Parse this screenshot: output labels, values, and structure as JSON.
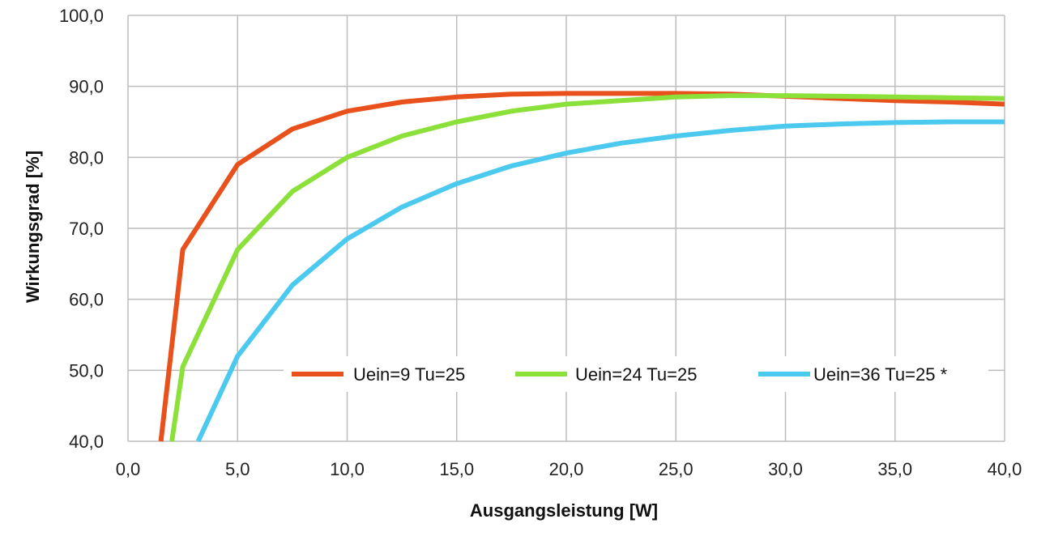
{
  "chart_data": {
    "type": "line",
    "title": "",
    "xlabel": "Ausgangsleistung [W]",
    "ylabel": "Wirkungsgrad [%]",
    "xlim": [
      0,
      40
    ],
    "ylim": [
      40,
      100
    ],
    "x_ticks": [
      "0,0",
      "5,0",
      "10,0",
      "15,0",
      "20,0",
      "25,0",
      "30,0",
      "35,0",
      "40,0"
    ],
    "y_ticks": [
      "40,0",
      "50,0",
      "60,0",
      "70,0",
      "80,0",
      "90,0",
      "100,0"
    ],
    "grid": true,
    "legend_position": "lower-right",
    "series": [
      {
        "name": "Uein=9 Tu=25",
        "color": "#e8501c",
        "points": [
          [
            1.5,
            40.0
          ],
          [
            2.5,
            67.0
          ],
          [
            5.0,
            79.0
          ],
          [
            7.5,
            84.0
          ],
          [
            10.0,
            86.5
          ],
          [
            12.5,
            87.8
          ],
          [
            15.0,
            88.5
          ],
          [
            17.5,
            88.9
          ],
          [
            20.0,
            89.0
          ],
          [
            22.5,
            89.0
          ],
          [
            25.0,
            89.0
          ],
          [
            27.5,
            88.9
          ],
          [
            30.0,
            88.6
          ],
          [
            32.5,
            88.3
          ],
          [
            35.0,
            88.0
          ],
          [
            37.5,
            87.8
          ],
          [
            40.0,
            87.5
          ]
        ]
      },
      {
        "name": "Uein=24 Tu=25",
        "color": "#8ce03a",
        "points": [
          [
            2.0,
            40.0
          ],
          [
            2.5,
            50.5
          ],
          [
            5.0,
            67.0
          ],
          [
            7.5,
            75.2
          ],
          [
            10.0,
            80.0
          ],
          [
            12.5,
            83.0
          ],
          [
            15.0,
            85.0
          ],
          [
            17.5,
            86.5
          ],
          [
            20.0,
            87.5
          ],
          [
            22.5,
            88.0
          ],
          [
            25.0,
            88.5
          ],
          [
            27.5,
            88.7
          ],
          [
            30.0,
            88.7
          ],
          [
            32.5,
            88.6
          ],
          [
            35.0,
            88.5
          ],
          [
            37.5,
            88.4
          ],
          [
            40.0,
            88.3
          ]
        ]
      },
      {
        "name": "Uein=36 Tu=25 *",
        "color": "#4cc9ee",
        "points": [
          [
            3.2,
            40.0
          ],
          [
            5.0,
            52.0
          ],
          [
            7.5,
            62.0
          ],
          [
            10.0,
            68.5
          ],
          [
            12.5,
            73.0
          ],
          [
            15.0,
            76.3
          ],
          [
            17.5,
            78.8
          ],
          [
            20.0,
            80.6
          ],
          [
            22.5,
            82.0
          ],
          [
            25.0,
            83.0
          ],
          [
            27.5,
            83.8
          ],
          [
            30.0,
            84.4
          ],
          [
            32.5,
            84.7
          ],
          [
            35.0,
            84.9
          ],
          [
            37.5,
            85.0
          ],
          [
            40.0,
            85.0
          ]
        ]
      }
    ]
  }
}
